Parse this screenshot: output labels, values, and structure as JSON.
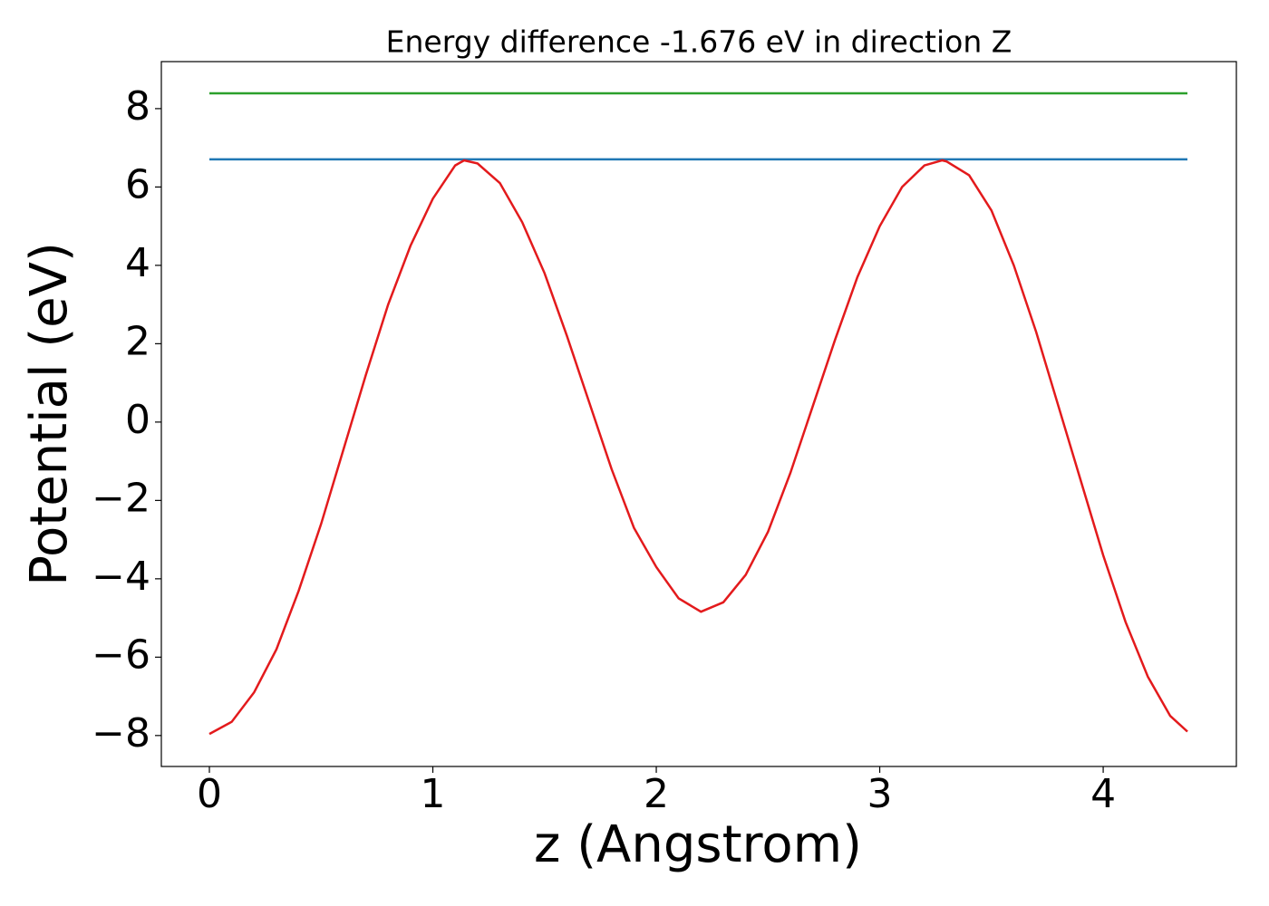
{
  "chart_data": {
    "type": "line",
    "title": "Energy difference -1.676 eV in direction Z",
    "xlabel": "z (Angstrom)",
    "ylabel": "Potential (eV)",
    "xlim": [
      -0.215,
      4.596
    ],
    "ylim": [
      -8.79,
      9.2
    ],
    "xticks": [
      0,
      1,
      2,
      3,
      4
    ],
    "yticks": [
      {
        "value": -8,
        "label": "−8"
      },
      {
        "value": -6,
        "label": "−6"
      },
      {
        "value": -4,
        "label": "−4"
      },
      {
        "value": -2,
        "label": "−2"
      },
      0,
      2,
      4,
      6,
      8
    ],
    "series": [
      {
        "color": "#e31a1c",
        "x": [
          0,
          0.1,
          0.2,
          0.3,
          0.4,
          0.5,
          0.6,
          0.7,
          0.8,
          0.9,
          1.0,
          1.1,
          1.14,
          1.2,
          1.3,
          1.4,
          1.5,
          1.6,
          1.7,
          1.8,
          1.9,
          2.0,
          2.1,
          2.2,
          2.3,
          2.4,
          2.5,
          2.6,
          2.7,
          2.8,
          2.9,
          3.0,
          3.1,
          3.2,
          3.28,
          3.3,
          3.4,
          3.5,
          3.6,
          3.7,
          3.8,
          3.9,
          4.0,
          4.1,
          4.2,
          4.3,
          4.377
        ],
        "values": [
          -7.96,
          -7.65,
          -6.9,
          -5.8,
          -4.3,
          -2.6,
          -0.7,
          1.2,
          3.0,
          4.5,
          5.7,
          6.55,
          6.68,
          6.6,
          6.1,
          5.1,
          3.8,
          2.2,
          0.5,
          -1.2,
          -2.7,
          -3.7,
          -4.5,
          -4.84,
          -4.6,
          -3.9,
          -2.8,
          -1.3,
          0.4,
          2.1,
          3.7,
          5.0,
          6.0,
          6.55,
          6.68,
          6.65,
          6.3,
          5.4,
          4.0,
          2.3,
          0.4,
          -1.5,
          -3.4,
          -5.1,
          -6.5,
          -7.5,
          -7.9
        ]
      },
      {
        "color": "#1f77b4",
        "x": [
          0,
          4.377
        ],
        "values": [
          6.705,
          6.705
        ]
      },
      {
        "color": "#2ca02c",
        "x": [
          0,
          4.377
        ],
        "values": [
          8.39,
          8.39
        ]
      }
    ]
  }
}
